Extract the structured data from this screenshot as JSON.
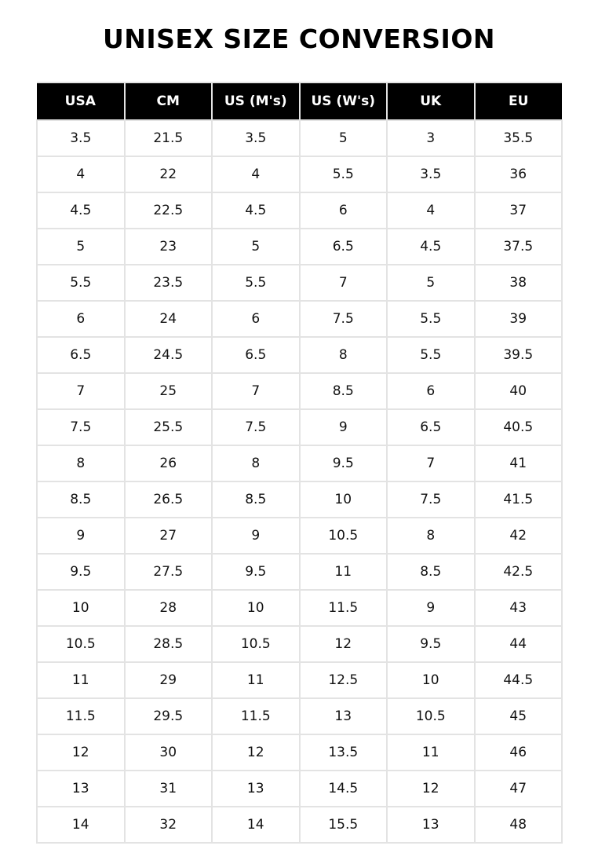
{
  "title": "UNISEX SIZE CONVERSION",
  "table": {
    "headers": [
      "USA",
      "CM",
      "US (M's)",
      "US (W's)",
      "UK",
      "EU"
    ],
    "rows": [
      [
        "3.5",
        "21.5",
        "3.5",
        "5",
        "3",
        "35.5"
      ],
      [
        "4",
        "22",
        "4",
        "5.5",
        "3.5",
        "36"
      ],
      [
        "4.5",
        "22.5",
        "4.5",
        "6",
        "4",
        "37"
      ],
      [
        "5",
        "23",
        "5",
        "6.5",
        "4.5",
        "37.5"
      ],
      [
        "5.5",
        "23.5",
        "5.5",
        "7",
        "5",
        "38"
      ],
      [
        "6",
        "24",
        "6",
        "7.5",
        "5.5",
        "39"
      ],
      [
        "6.5",
        "24.5",
        "6.5",
        "8",
        "5.5",
        "39.5"
      ],
      [
        "7",
        "25",
        "7",
        "8.5",
        "6",
        "40"
      ],
      [
        "7.5",
        "25.5",
        "7.5",
        "9",
        "6.5",
        "40.5"
      ],
      [
        "8",
        "26",
        "8",
        "9.5",
        "7",
        "41"
      ],
      [
        "8.5",
        "26.5",
        "8.5",
        "10",
        "7.5",
        "41.5"
      ],
      [
        "9",
        "27",
        "9",
        "10.5",
        "8",
        "42"
      ],
      [
        "9.5",
        "27.5",
        "9.5",
        "11",
        "8.5",
        "42.5"
      ],
      [
        "10",
        "28",
        "10",
        "11.5",
        "9",
        "43"
      ],
      [
        "10.5",
        "28.5",
        "10.5",
        "12",
        "9.5",
        "44"
      ],
      [
        "11",
        "29",
        "11",
        "12.5",
        "10",
        "44.5"
      ],
      [
        "11.5",
        "29.5",
        "11.5",
        "13",
        "10.5",
        "45"
      ],
      [
        "12",
        "30",
        "12",
        "13.5",
        "11",
        "46"
      ],
      [
        "13",
        "31",
        "13",
        "14.5",
        "12",
        "47"
      ],
      [
        "14",
        "32",
        "14",
        "15.5",
        "13",
        "48"
      ]
    ]
  }
}
